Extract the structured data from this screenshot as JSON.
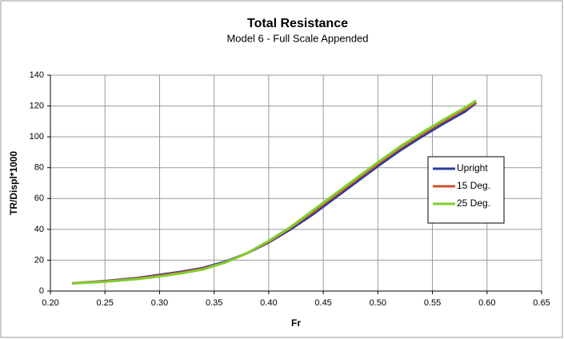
{
  "chart_data": {
    "type": "line",
    "title": "Total Resistance",
    "subtitle": "Model 6 - Full Scale Appended",
    "x_label": "Fr",
    "y_label": "TR/Displ*1000",
    "x": [
      0.22,
      0.25,
      0.28,
      0.3,
      0.32,
      0.34,
      0.36,
      0.38,
      0.4,
      0.42,
      0.44,
      0.46,
      0.48,
      0.5,
      0.52,
      0.54,
      0.56,
      0.58,
      0.59
    ],
    "series": [
      {
        "name": "Upright",
        "color": "#2b3b9c",
        "values": [
          5,
          6.5,
          8.5,
          10.5,
          12.5,
          15,
          19,
          24.5,
          31.5,
          40,
          49.5,
          60,
          70.5,
          81,
          91,
          100,
          108.5,
          116.5,
          122
        ]
      },
      {
        "name": "15 Deg.",
        "color": "#d0502e",
        "values": [
          5,
          6.3,
          8.2,
          10,
          12,
          14.5,
          18.5,
          24.5,
          32,
          41,
          51,
          61.5,
          72,
          82.5,
          92.5,
          101.5,
          110,
          118,
          122.5
        ]
      },
      {
        "name": "25 Deg.",
        "color": "#7fcf2e",
        "values": [
          5,
          6,
          7.8,
          9.5,
          11.5,
          14,
          18.5,
          24.5,
          32.5,
          41.5,
          52,
          62.5,
          73,
          83.5,
          93.5,
          102.5,
          111,
          119,
          123.5
        ]
      }
    ],
    "xlim": [
      0.2,
      0.65
    ],
    "xticks": [
      {
        "value": 0.2,
        "label": "0.20"
      },
      {
        "value": 0.25,
        "label": "0.25"
      },
      {
        "value": 0.3,
        "label": "0.30"
      },
      {
        "value": 0.35,
        "label": "0.35"
      },
      {
        "value": 0.4,
        "label": "0.40"
      },
      {
        "value": 0.45,
        "label": "0.45"
      },
      {
        "value": 0.5,
        "label": "0.50"
      },
      {
        "value": 0.55,
        "label": "0.55"
      },
      {
        "value": 0.6,
        "label": "0.60"
      },
      {
        "value": 0.65,
        "label": "0.65"
      }
    ],
    "ylim": [
      0,
      140
    ],
    "yticks": [
      0,
      20,
      40,
      60,
      80,
      100,
      120,
      140
    ],
    "grid": true,
    "legend_position": "right"
  }
}
